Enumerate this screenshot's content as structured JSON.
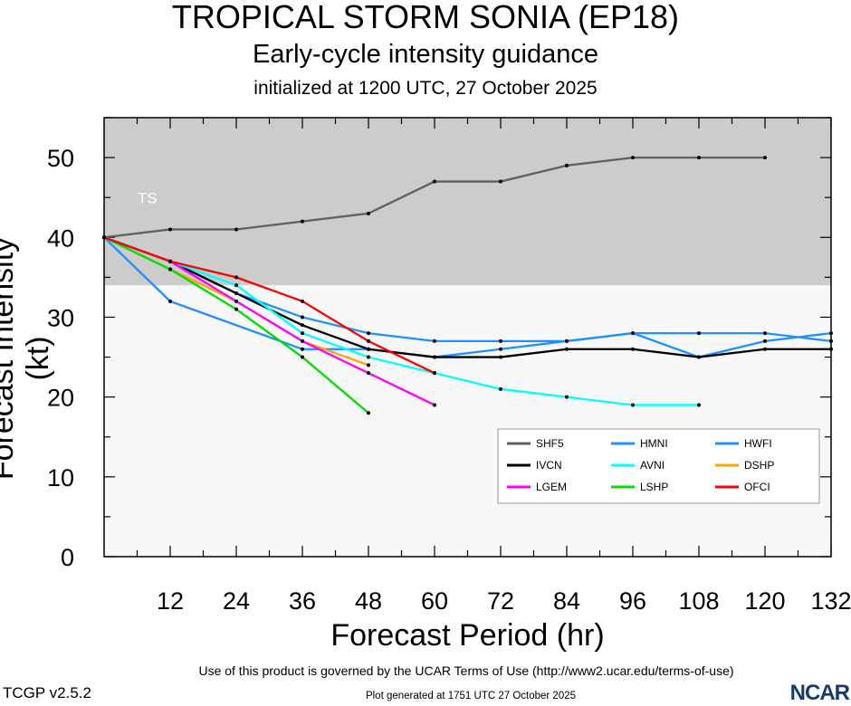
{
  "header": {
    "title": "TROPICAL STORM SONIA (EP18)",
    "subtitle": "Early-cycle intensity guidance",
    "initialized": "initialized at 1200 UTC, 27 October 2025"
  },
  "footer": {
    "terms": "Use of this product is governed by the UCAR Terms of Use (http://www2.ucar.edu/terms-of-use)",
    "generated": "Plot generated at 1751 UTC   27 October 2025",
    "version": "TCGP v2.5.2",
    "logo": "NCAR"
  },
  "chart_data": {
    "type": "line",
    "title": "TROPICAL STORM SONIA (EP18)",
    "xlabel": "Forecast Period (hr)",
    "ylabel": "Forecast Intensity (kt)",
    "xlim": [
      0,
      132
    ],
    "ylim": [
      0,
      55
    ],
    "xticks": [
      12,
      24,
      36,
      48,
      60,
      72,
      84,
      96,
      108,
      120,
      132
    ],
    "yticks": [
      0,
      10,
      20,
      30,
      40,
      50
    ],
    "bands": [
      {
        "label": "TS",
        "from": 34,
        "to": 55,
        "color": "#cccccc"
      }
    ],
    "x": [
      0,
      12,
      24,
      36,
      48,
      60,
      72,
      84,
      96,
      108,
      120,
      132
    ],
    "series": [
      {
        "name": "SHF5",
        "color": "#606060",
        "values": [
          40,
          41,
          41,
          42,
          43,
          47,
          47,
          49,
          50,
          50,
          50,
          null
        ]
      },
      {
        "name": "HMNI",
        "color": "#1e90ff",
        "values": [
          40,
          37,
          33,
          30,
          28,
          27,
          27,
          27,
          28,
          28,
          28,
          27
        ]
      },
      {
        "name": "HWFI",
        "color": "#1e90ff",
        "values": [
          40,
          32,
          null,
          26,
          26,
          25,
          26,
          27,
          28,
          25,
          27,
          28
        ]
      },
      {
        "name": "IVCN",
        "color": "#000000",
        "values": [
          40,
          37,
          33,
          29,
          26,
          25,
          25,
          26,
          26,
          25,
          26,
          26
        ]
      },
      {
        "name": "AVNI",
        "color": "#00ffff",
        "values": [
          40,
          37,
          34,
          28,
          25,
          23,
          21,
          20,
          19,
          19,
          null,
          null
        ]
      },
      {
        "name": "DSHP",
        "color": "#ffa500",
        "values": [
          40,
          36,
          32,
          27,
          24,
          null,
          null,
          null,
          null,
          null,
          null,
          null
        ]
      },
      {
        "name": "LGEM",
        "color": "#ff00ff",
        "values": [
          40,
          37,
          32,
          27,
          23,
          19,
          null,
          null,
          null,
          null,
          null,
          null
        ]
      },
      {
        "name": "LSHP",
        "color": "#00dd00",
        "values": [
          40,
          36,
          31,
          25,
          18,
          null,
          null,
          null,
          null,
          null,
          null,
          null
        ]
      },
      {
        "name": "OFCI",
        "color": "#ff0000",
        "values": [
          40,
          37,
          35,
          32,
          27,
          23,
          null,
          null,
          null,
          null,
          null,
          null
        ]
      }
    ]
  }
}
